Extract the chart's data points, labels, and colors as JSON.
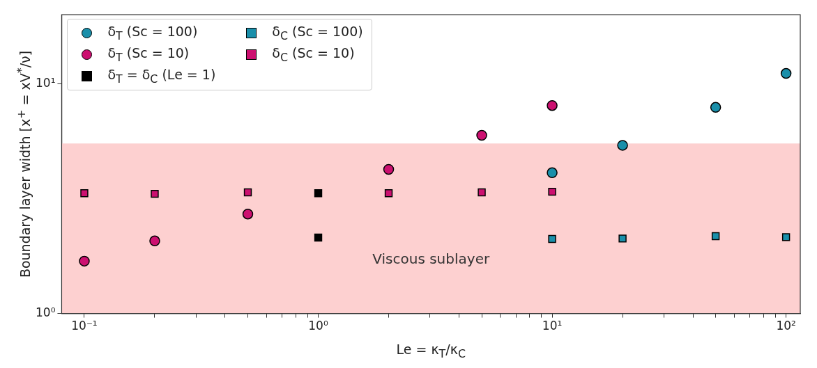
{
  "chart_data": {
    "type": "scatter",
    "xlabel": "Le = κ$_{T}$/κ$_{C}$",
    "ylabel": "Boundary layer width [x$^{+}$ = xV$^{*}$/ν]",
    "log": "xy",
    "xlim": [
      0.08,
      115
    ],
    "ylim": [
      1,
      20
    ],
    "xticks": [
      {
        "value": 0.1,
        "label": "10⁻¹"
      },
      {
        "value": 0.2,
        "label": null
      },
      {
        "value": 0.3,
        "label": null
      },
      {
        "value": 0.4,
        "label": null
      },
      {
        "value": 0.5,
        "label": null
      },
      {
        "value": 0.6,
        "label": null
      },
      {
        "value": 0.7,
        "label": null
      },
      {
        "value": 0.8,
        "label": null
      },
      {
        "value": 0.9,
        "label": null
      },
      {
        "value": 1,
        "label": "10⁰"
      },
      {
        "value": 2,
        "label": null
      },
      {
        "value": 3,
        "label": null
      },
      {
        "value": 4,
        "label": null
      },
      {
        "value": 5,
        "label": null
      },
      {
        "value": 6,
        "label": null
      },
      {
        "value": 7,
        "label": null
      },
      {
        "value": 8,
        "label": null
      },
      {
        "value": 9,
        "label": null
      },
      {
        "value": 10,
        "label": "10¹"
      },
      {
        "value": 20,
        "label": null
      },
      {
        "value": 30,
        "label": null
      },
      {
        "value": 40,
        "label": null
      },
      {
        "value": 50,
        "label": null
      },
      {
        "value": 60,
        "label": null
      },
      {
        "value": 70,
        "label": null
      },
      {
        "value": 80,
        "label": null
      },
      {
        "value": 90,
        "label": null
      },
      {
        "value": 100,
        "label": "10²"
      }
    ],
    "yticks": [
      {
        "value": 1,
        "label": "10⁰"
      },
      {
        "value": 10,
        "label": "10¹"
      }
    ],
    "grid": false,
    "legend": "top left",
    "bands": [
      {
        "axis": "y",
        "from": 1,
        "to": 5.5,
        "label": "Viscous sublayer",
        "color": "#fdd0d0"
      }
    ],
    "series": [
      {
        "name": "δ$_{T}$ (Sc = 100)",
        "color": "#1a8faa",
        "marker": "circle",
        "x": [
          10,
          20,
          50,
          100
        ],
        "values": [
          4.1,
          5.4,
          7.9,
          11.1
        ]
      },
      {
        "name": "δ$_{T}$ (Sc = 10)",
        "color": "#cc1070",
        "marker": "circle",
        "x": [
          0.1,
          0.2,
          0.5,
          2,
          5,
          10
        ],
        "values": [
          1.69,
          2.07,
          2.71,
          4.24,
          5.97,
          8.05
        ]
      },
      {
        "name": "δ$_{T}$ = δ$_{C}$ (Le = 1)",
        "color": "#000000",
        "marker": "square",
        "x": [
          1,
          1
        ],
        "values": [
          3.34,
          2.14
        ]
      },
      {
        "name": "δ$_{C}$ (Sc = 100)",
        "color": "#1a8faa",
        "marker": "square",
        "x": [
          10,
          20,
          50,
          100
        ],
        "values": [
          2.11,
          2.12,
          2.17,
          2.15
        ]
      },
      {
        "name": "δ$_{C}$ (Sc = 10)",
        "color": "#cc1070",
        "marker": "square",
        "x": [
          0.1,
          0.2,
          0.5,
          2,
          5,
          10
        ],
        "values": [
          3.34,
          3.32,
          3.37,
          3.34,
          3.37,
          3.39
        ]
      }
    ]
  }
}
